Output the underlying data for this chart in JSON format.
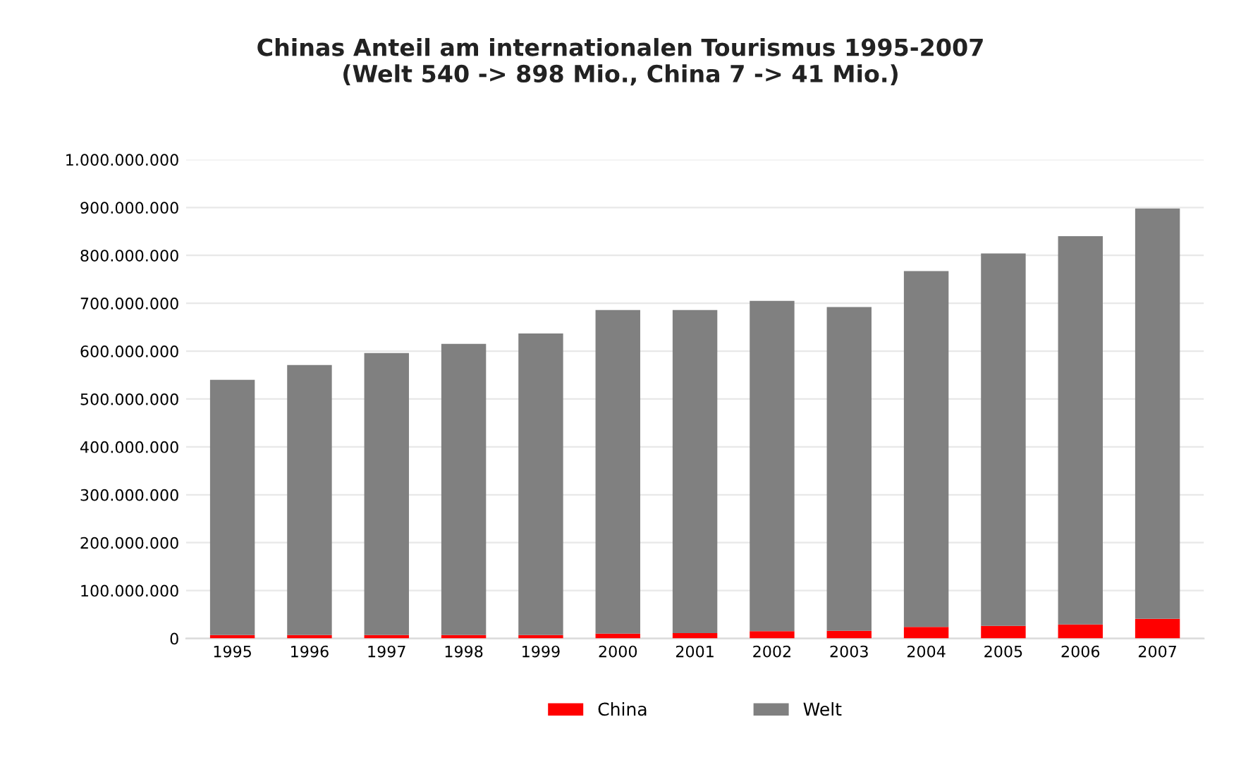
{
  "chart_data": {
    "type": "bar",
    "title": "Chinas Anteil am internationalen Tourismus 1995-2007\n(Welt 540 -> 898 Mio., China 7 -> 41 Mio.)",
    "categories": [
      "1995",
      "1996",
      "1997",
      "1998",
      "1999",
      "2000",
      "2001",
      "2002",
      "2003",
      "2004",
      "2005",
      "2006",
      "2007"
    ],
    "stacked": true,
    "series": [
      {
        "name": "China",
        "color": "#ff0000",
        "values": [
          7000000,
          7000000,
          7000000,
          7000000,
          7000000,
          10000000,
          11000000,
          15000000,
          16000000,
          24000000,
          26000000,
          29000000,
          41000000
        ]
      },
      {
        "name": "Welt",
        "color": "#808080",
        "values": [
          533000000,
          564000000,
          589000000,
          608000000,
          630000000,
          676000000,
          675000000,
          690000000,
          676000000,
          743000000,
          778000000,
          811000000,
          857000000
        ]
      }
    ],
    "ylim": [
      0,
      1000000000
    ],
    "yticks": [
      {
        "value": 0,
        "label": "0"
      },
      {
        "value": 100000000,
        "label": "100.000.000"
      },
      {
        "value": 200000000,
        "label": "200.000.000"
      },
      {
        "value": 300000000,
        "label": "300.000.000"
      },
      {
        "value": 400000000,
        "label": "400.000.000"
      },
      {
        "value": 500000000,
        "label": "500.000.000"
      },
      {
        "value": 600000000,
        "label": "600.000.000"
      },
      {
        "value": 700000000,
        "label": "700.000.000"
      },
      {
        "value": 800000000,
        "label": "800.000.000"
      },
      {
        "value": 900000000,
        "label": "900.000.000"
      },
      {
        "value": 1000000000,
        "label": "1.000.000.000"
      }
    ],
    "grid": "y",
    "legend": "bottom"
  }
}
